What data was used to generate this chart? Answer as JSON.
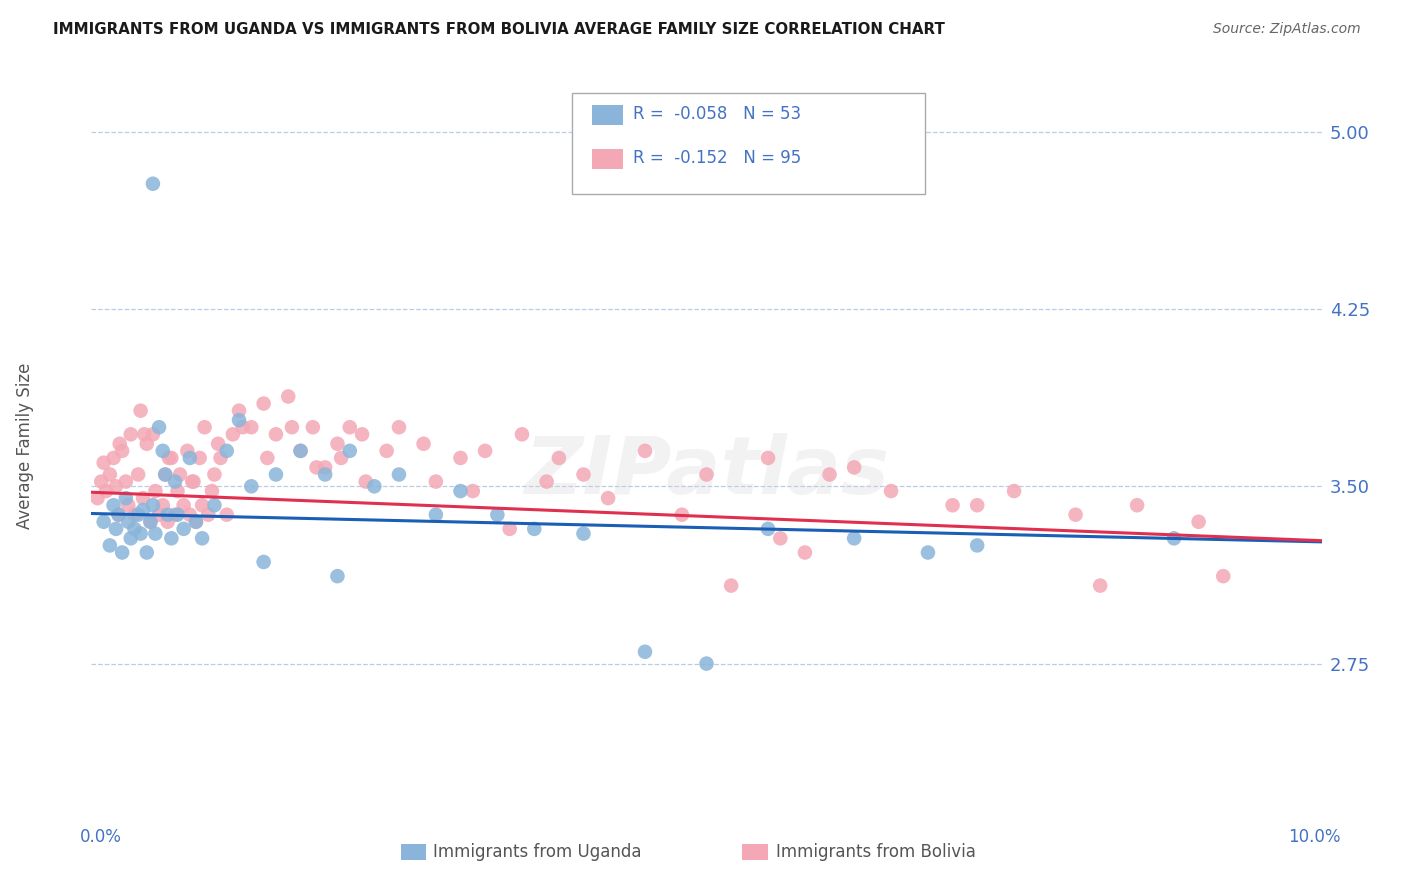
{
  "title": "IMMIGRANTS FROM UGANDA VS IMMIGRANTS FROM BOLIVIA AVERAGE FAMILY SIZE CORRELATION CHART",
  "source": "Source: ZipAtlas.com",
  "ylabel": "Average Family Size",
  "yticks": [
    2.75,
    3.5,
    4.25,
    5.0
  ],
  "xlim": [
    0.0,
    10.0
  ],
  "ylim": [
    2.18,
    5.18
  ],
  "uganda_color": "#8ab4d9",
  "bolivia_color": "#f4a8b5",
  "uganda_line_color": "#1a5eb5",
  "bolivia_line_color": "#e03050",
  "axis_color": "#4472c4",
  "watermark": "ZIPatlas",
  "uganda_R": -0.058,
  "uganda_N": 53,
  "bolivia_R": -0.152,
  "bolivia_N": 95,
  "uganda_scatter_x": [
    0.1,
    0.15,
    0.18,
    0.2,
    0.22,
    0.25,
    0.28,
    0.3,
    0.32,
    0.35,
    0.38,
    0.4,
    0.42,
    0.45,
    0.48,
    0.5,
    0.52,
    0.55,
    0.58,
    0.6,
    0.62,
    0.65,
    0.68,
    0.7,
    0.75,
    0.8,
    0.85,
    0.9,
    1.0,
    1.1,
    1.2,
    1.3,
    1.5,
    1.7,
    1.9,
    2.1,
    2.3,
    2.5,
    2.8,
    3.0,
    3.3,
    3.6,
    4.0,
    5.5,
    6.2,
    6.8,
    7.2,
    8.8,
    1.4,
    2.0,
    4.5,
    5.0,
    0.5
  ],
  "uganda_scatter_y": [
    3.35,
    3.25,
    3.42,
    3.32,
    3.38,
    3.22,
    3.45,
    3.35,
    3.28,
    3.32,
    3.38,
    3.3,
    3.4,
    3.22,
    3.35,
    3.42,
    3.3,
    3.75,
    3.65,
    3.55,
    3.38,
    3.28,
    3.52,
    3.38,
    3.32,
    3.62,
    3.35,
    3.28,
    3.42,
    3.65,
    3.78,
    3.5,
    3.55,
    3.65,
    3.55,
    3.65,
    3.5,
    3.55,
    3.38,
    3.48,
    3.38,
    3.32,
    3.3,
    3.32,
    3.28,
    3.22,
    3.25,
    3.28,
    3.18,
    3.12,
    2.8,
    2.75,
    4.78
  ],
  "bolivia_scatter_x": [
    0.05,
    0.08,
    0.1,
    0.12,
    0.15,
    0.18,
    0.2,
    0.22,
    0.25,
    0.28,
    0.3,
    0.32,
    0.35,
    0.38,
    0.4,
    0.42,
    0.45,
    0.48,
    0.5,
    0.52,
    0.55,
    0.58,
    0.6,
    0.62,
    0.65,
    0.68,
    0.7,
    0.72,
    0.75,
    0.78,
    0.8,
    0.82,
    0.85,
    0.88,
    0.9,
    0.92,
    0.95,
    0.98,
    1.0,
    1.05,
    1.1,
    1.15,
    1.2,
    1.3,
    1.4,
    1.5,
    1.6,
    1.7,
    1.8,
    1.9,
    2.0,
    2.1,
    2.2,
    2.4,
    2.5,
    2.7,
    2.8,
    3.0,
    3.2,
    3.5,
    3.8,
    4.0,
    4.5,
    5.0,
    5.5,
    6.0,
    6.5,
    7.0,
    7.5,
    8.0,
    8.5,
    9.0,
    0.23,
    0.43,
    0.63,
    0.83,
    1.03,
    1.23,
    1.43,
    1.63,
    1.83,
    2.03,
    2.23,
    3.1,
    3.4,
    4.2,
    5.2,
    5.8,
    6.2,
    7.2,
    8.2,
    9.2,
    3.7,
    4.8,
    5.6
  ],
  "bolivia_scatter_y": [
    3.45,
    3.52,
    3.6,
    3.48,
    3.55,
    3.62,
    3.5,
    3.38,
    3.65,
    3.52,
    3.42,
    3.72,
    3.38,
    3.55,
    3.82,
    3.45,
    3.68,
    3.35,
    3.72,
    3.48,
    3.38,
    3.42,
    3.55,
    3.35,
    3.62,
    3.38,
    3.48,
    3.55,
    3.42,
    3.65,
    3.38,
    3.52,
    3.35,
    3.62,
    3.42,
    3.75,
    3.38,
    3.48,
    3.55,
    3.62,
    3.38,
    3.72,
    3.82,
    3.75,
    3.85,
    3.72,
    3.88,
    3.65,
    3.75,
    3.58,
    3.68,
    3.75,
    3.72,
    3.65,
    3.75,
    3.68,
    3.52,
    3.62,
    3.65,
    3.72,
    3.62,
    3.55,
    3.65,
    3.55,
    3.62,
    3.55,
    3.48,
    3.42,
    3.48,
    3.38,
    3.42,
    3.35,
    3.68,
    3.72,
    3.62,
    3.52,
    3.68,
    3.75,
    3.62,
    3.75,
    3.58,
    3.62,
    3.52,
    3.48,
    3.32,
    3.45,
    3.08,
    3.22,
    3.58,
    3.42,
    3.08,
    3.12,
    3.52,
    3.38,
    3.28
  ]
}
